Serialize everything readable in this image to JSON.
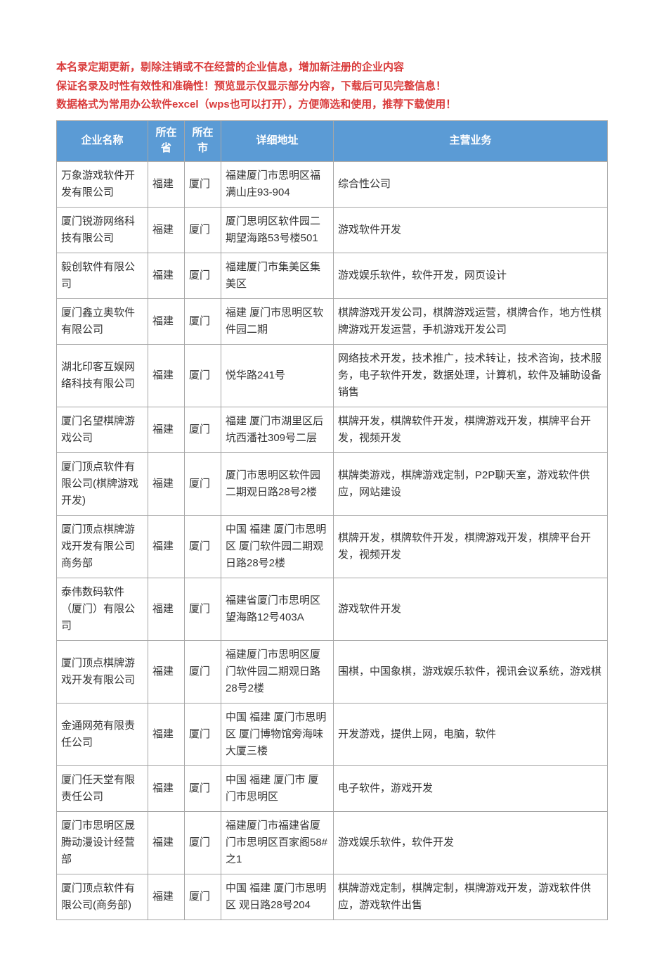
{
  "intro": {
    "line1": "本名录定期更新，剔除注销或不在经营的企业信息，增加新注册的企业内容",
    "line2": "保证名录及时性有效性和准确性！预览显示仅显示部分内容，下载后可见完整信息！",
    "line3": "数据格式为常用办公软件excel（wps也可以打开），方便筛选和使用，推荐下载使用！"
  },
  "columns": {
    "name": "企业名称",
    "province": "所在省",
    "city": "所在市",
    "address": "详细地址",
    "business": "主营业务"
  },
  "header_bg": "#5b9bd5",
  "header_color": "#ffffff",
  "intro_color": "#d93a3a",
  "border_color": "#a6a6a6",
  "rows": [
    {
      "name": "万象游戏软件开发有限公司",
      "province": "福建",
      "city": "厦门",
      "address": "福建厦门市思明区福满山庄93-904",
      "business": "综合性公司"
    },
    {
      "name": "厦门锐游网络科技有限公司",
      "province": "福建",
      "city": "厦门",
      "address": "厦门思明区软件园二期望海路53号楼501",
      "business": "游戏软件开发"
    },
    {
      "name": "毅创软件有限公司",
      "province": "福建",
      "city": "厦门",
      "address": "福建厦门市集美区集美区",
      "business": "游戏娱乐软件，软件开发，网页设计"
    },
    {
      "name": "厦门鑫立奥软件有限公司",
      "province": "福建",
      "city": "厦门",
      "address": "福建 厦门市思明区软件园二期",
      "business": "棋牌游戏开发公司，棋牌游戏运营，棋牌合作，地方性棋牌游戏开发运营，手机游戏开发公司"
    },
    {
      "name": "湖北印客互娱网络科技有限公司",
      "province": "福建",
      "city": "厦门",
      "address": "悦华路241号",
      "business": "网络技术开发，技术推广，技术转让，技术咨询，技术服务，电子软件开发，数据处理，计算机，软件及辅助设备销售"
    },
    {
      "name": "厦门名望棋牌游戏公司",
      "province": "福建",
      "city": "厦门",
      "address": "福建 厦门市湖里区后坑西潘社309号二层",
      "business": "棋牌开发，棋牌软件开发，棋牌游戏开发，棋牌平台开发，视频开发"
    },
    {
      "name": "厦门顶点软件有限公司(棋牌游戏开发)",
      "province": "福建",
      "city": "厦门",
      "address": "厦门市思明区软件园二期观日路28号2楼",
      "business": "棋牌类游戏，棋牌游戏定制，P2P聊天室，游戏软件供应，网站建设"
    },
    {
      "name": "厦门顶点棋牌游戏开发有限公司商务部",
      "province": "福建",
      "city": "厦门",
      "address": "中国 福建 厦门市思明区 厦门软件园二期观日路28号2楼",
      "business": "棋牌开发，棋牌软件开发，棋牌游戏开发，棋牌平台开发，视频开发"
    },
    {
      "name": "泰伟数码软件（厦门）有限公司",
      "province": "福建",
      "city": "厦门",
      "address": "福建省厦门市思明区望海路12号403A",
      "business": "游戏软件开发"
    },
    {
      "name": "厦门顶点棋牌游戏开发有限公司",
      "province": "福建",
      "city": "厦门",
      "address": "福建厦门市思明区厦门软件园二期观日路28号2楼",
      "business": "围棋，中国象棋，游戏娱乐软件，视讯会议系统，游戏棋"
    },
    {
      "name": "金通网苑有限责任公司",
      "province": "福建",
      "city": "厦门",
      "address": "中国 福建 厦门市思明区 厦门博物馆旁海味大厦三楼",
      "business": "开发游戏，提供上网，电脑，软件"
    },
    {
      "name": "厦门任天堂有限责任公司",
      "province": "福建",
      "city": "厦门",
      "address": "中国 福建 厦门市 厦门市思明区",
      "business": "电子软件，游戏开发"
    },
    {
      "name": "厦门市思明区晟腾动漫设计经营部",
      "province": "福建",
      "city": "厦门",
      "address": "福建厦门市福建省厦门市思明区百家阁58#之1",
      "business": "游戏娱乐软件，软件开发"
    },
    {
      "name": "厦门顶点软件有限公司(商务部)",
      "province": "福建",
      "city": "厦门",
      "address": "中国 福建 厦门市思明区 观日路28号204",
      "business": "棋牌游戏定制，棋牌定制，棋牌游戏开发，游戏软件供应，游戏软件出售"
    }
  ]
}
